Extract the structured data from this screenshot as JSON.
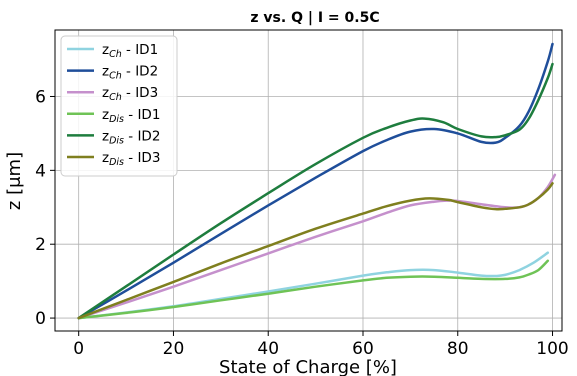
{
  "chart_data": {
    "type": "line",
    "title": "z vs. Q | I = 0.5C",
    "xlabel": "State of Charge [%]",
    "ylabel": "z [μm]",
    "xlim": [
      -5,
      102
    ],
    "ylim": [
      -0.35,
      7.8
    ],
    "x_ticks": [
      0,
      20,
      40,
      60,
      80,
      100
    ],
    "y_ticks": [
      0,
      2,
      4,
      6
    ],
    "grid": true,
    "legend_position": "top-left",
    "series": [
      {
        "name": "zCh - ID1",
        "base": "z",
        "sub": "Ch",
        "suffix": " - ID1",
        "color": "#8fd3e0",
        "x": [
          0,
          10,
          20,
          30,
          40,
          50,
          60,
          65,
          70,
          75,
          80,
          85,
          88,
          90,
          93,
          96,
          99
        ],
        "y": [
          0,
          0.15,
          0.32,
          0.52,
          0.72,
          0.93,
          1.15,
          1.24,
          1.3,
          1.3,
          1.23,
          1.15,
          1.14,
          1.17,
          1.3,
          1.5,
          1.77
        ]
      },
      {
        "name": "zCh - ID2",
        "base": "z",
        "sub": "Ch",
        "suffix": " - ID2",
        "color": "#1f4e9a",
        "x": [
          0,
          10,
          20,
          30,
          40,
          50,
          60,
          65,
          70,
          75,
          80,
          85,
          88,
          90,
          93,
          95,
          97,
          99,
          100
        ],
        "y": [
          0,
          0.74,
          1.5,
          2.28,
          3.05,
          3.8,
          4.52,
          4.82,
          5.05,
          5.12,
          5.0,
          4.77,
          4.75,
          4.88,
          5.2,
          5.6,
          6.2,
          6.95,
          7.42
        ]
      },
      {
        "name": "zCh - ID3",
        "base": "z",
        "sub": "Ch",
        "suffix": " - ID3",
        "color": "#c590cc",
        "x": [
          0,
          10,
          20,
          30,
          40,
          50,
          60,
          65,
          70,
          75,
          78,
          80,
          85,
          90,
          93,
          95,
          97,
          99,
          100.5
        ],
        "y": [
          0,
          0.42,
          0.85,
          1.3,
          1.75,
          2.2,
          2.62,
          2.85,
          3.05,
          3.15,
          3.18,
          3.17,
          3.08,
          3.0,
          3.0,
          3.08,
          3.25,
          3.55,
          3.88
        ]
      },
      {
        "name": "zDis - ID1",
        "base": "z",
        "sub": "Dis",
        "suffix": " - ID1",
        "color": "#6fc356",
        "x": [
          0,
          10,
          20,
          30,
          40,
          50,
          60,
          65,
          70,
          75,
          80,
          85,
          90,
          93,
          95,
          97,
          99
        ],
        "y": [
          0,
          0.14,
          0.3,
          0.48,
          0.66,
          0.85,
          1.02,
          1.09,
          1.12,
          1.12,
          1.09,
          1.06,
          1.06,
          1.1,
          1.18,
          1.3,
          1.55
        ]
      },
      {
        "name": "zDis - ID2",
        "base": "z",
        "sub": "Dis",
        "suffix": " - ID2",
        "color": "#1e7d3e",
        "x": [
          0,
          10,
          20,
          30,
          40,
          50,
          60,
          65,
          70,
          73,
          77,
          80,
          85,
          88,
          90,
          93,
          95,
          97,
          99,
          100
        ],
        "y": [
          0,
          0.86,
          1.72,
          2.57,
          3.38,
          4.17,
          4.88,
          5.15,
          5.35,
          5.4,
          5.3,
          5.12,
          4.92,
          4.9,
          4.95,
          5.1,
          5.4,
          5.9,
          6.5,
          6.88
        ]
      },
      {
        "name": "zDis - ID3",
        "base": "z",
        "sub": "Dis",
        "suffix": " - ID3",
        "color": "#7f7f1f",
        "x": [
          0,
          10,
          20,
          30,
          40,
          50,
          60,
          65,
          70,
          74,
          78,
          80,
          85,
          88,
          90,
          93,
          95,
          97,
          99,
          100
        ],
        "y": [
          0,
          0.49,
          0.98,
          1.48,
          1.95,
          2.42,
          2.83,
          3.03,
          3.18,
          3.24,
          3.2,
          3.14,
          3.0,
          2.95,
          2.96,
          3.0,
          3.08,
          3.25,
          3.48,
          3.65
        ]
      }
    ]
  }
}
